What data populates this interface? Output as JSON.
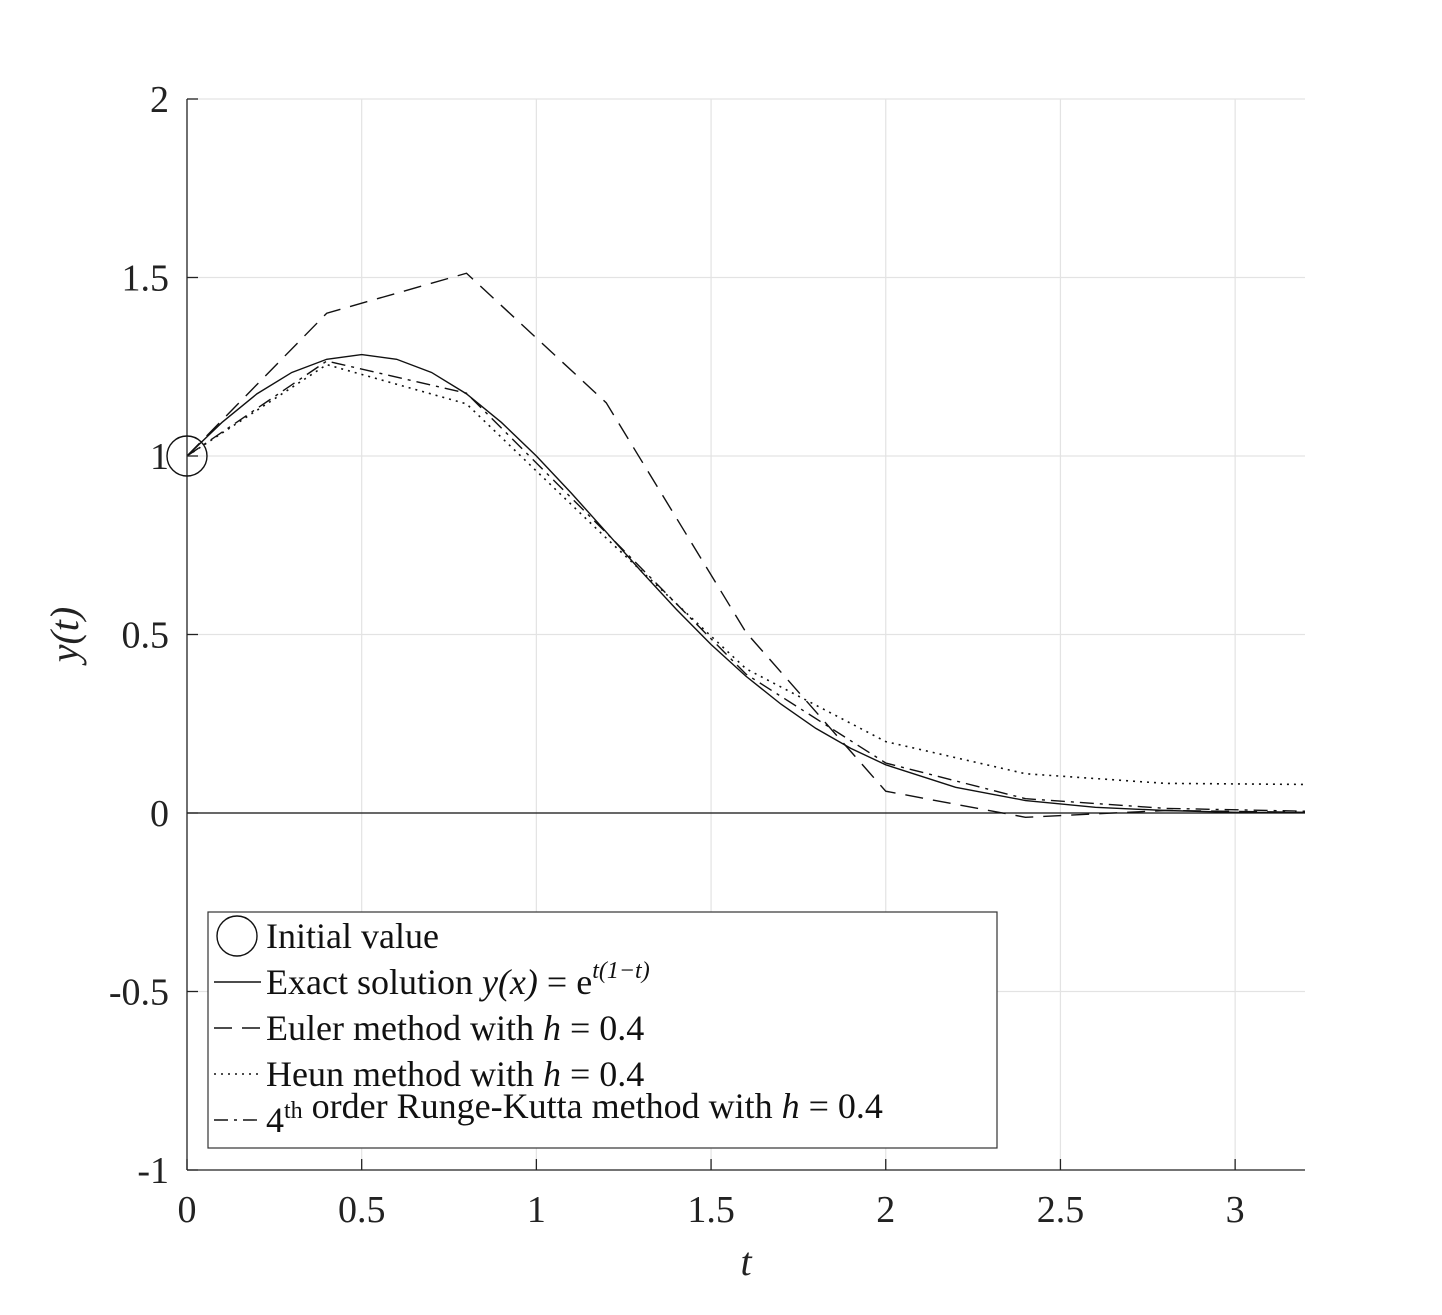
{
  "chart_data": {
    "type": "line",
    "xlabel": "t",
    "ylabel": "y(t)",
    "xlim": [
      0,
      3.2
    ],
    "ylim": [
      -1,
      2
    ],
    "xticks": [
      0,
      0.5,
      1,
      1.5,
      2,
      2.5,
      3
    ],
    "xtick_labels": [
      "0",
      "0.5",
      "1",
      "1.5",
      "2",
      "2.5",
      "3"
    ],
    "yticks": [
      -1,
      -0.5,
      0,
      0.5,
      1,
      1.5,
      2
    ],
    "ytick_labels": [
      "-1",
      "-0.5",
      "0",
      "0.5",
      "1",
      "1.5",
      "2"
    ],
    "grid": true,
    "zero_line": true,
    "legend_position": "bottom-left",
    "initial_value": {
      "x": 0,
      "y": 1,
      "label": "Initial value"
    },
    "series": [
      {
        "name": "Exact solution y(x) = e^{t(1-t)}",
        "style": "solid",
        "x": [
          0,
          0.1,
          0.2,
          0.3,
          0.4,
          0.5,
          0.6,
          0.7,
          0.8,
          0.9,
          1.0,
          1.1,
          1.2,
          1.3,
          1.4,
          1.5,
          1.6,
          1.7,
          1.8,
          1.9,
          2.0,
          2.2,
          2.4,
          2.6,
          2.8,
          3.0,
          3.2
        ],
        "y": [
          1,
          1.094,
          1.174,
          1.234,
          1.271,
          1.284,
          1.271,
          1.234,
          1.174,
          1.094,
          1,
          0.896,
          0.787,
          0.677,
          0.571,
          0.472,
          0.383,
          0.305,
          0.237,
          0.181,
          0.135,
          0.072,
          0.035,
          0.016,
          0.007,
          0.002,
          0.001
        ]
      },
      {
        "name": "Euler method with h = 0.4",
        "style": "dashed",
        "x": [
          0,
          0.4,
          0.8,
          1.2,
          1.6,
          2.0,
          2.4,
          2.8,
          3.2
        ],
        "y": [
          1,
          1.4,
          1.512,
          1.149,
          0.506,
          0.061,
          -0.012,
          0.007,
          0.002
        ]
      },
      {
        "name": "Heun method with h = 0.4",
        "style": "dotted",
        "x": [
          0,
          0.4,
          0.8,
          1.2,
          1.6,
          2.0,
          2.4,
          2.8,
          3.2
        ],
        "y": [
          1,
          1.256,
          1.146,
          0.77,
          0.404,
          0.2,
          0.11,
          0.083,
          0.08
        ]
      },
      {
        "name": "4th order Runge-Kutta method with h = 0.4",
        "style": "dashdot",
        "x": [
          0,
          0.4,
          0.8,
          1.2,
          1.6,
          2.0,
          2.4,
          2.8,
          3.2
        ],
        "y": [
          1,
          1.266,
          1.176,
          0.785,
          0.389,
          0.14,
          0.04,
          0.013,
          0.005
        ]
      }
    ],
    "legend": [
      {
        "marker": "circle",
        "text": "Initial value"
      },
      {
        "marker": "solid",
        "text": "Exact solution ",
        "math": "y(x)",
        "suffix": " = e",
        "sup": "t(1−t)"
      },
      {
        "marker": "dashed",
        "text": "Euler method with ",
        "math": "h",
        "suffix": " = 0.4"
      },
      {
        "marker": "dotted",
        "text": "Heun method with ",
        "math": "h",
        "suffix": " = 0.4"
      },
      {
        "marker": "dashdot",
        "prefix": "4",
        "prefix_sup": "th",
        "text": " order Runge-Kutta method with ",
        "math": "h",
        "suffix": " = 0.4"
      }
    ]
  }
}
